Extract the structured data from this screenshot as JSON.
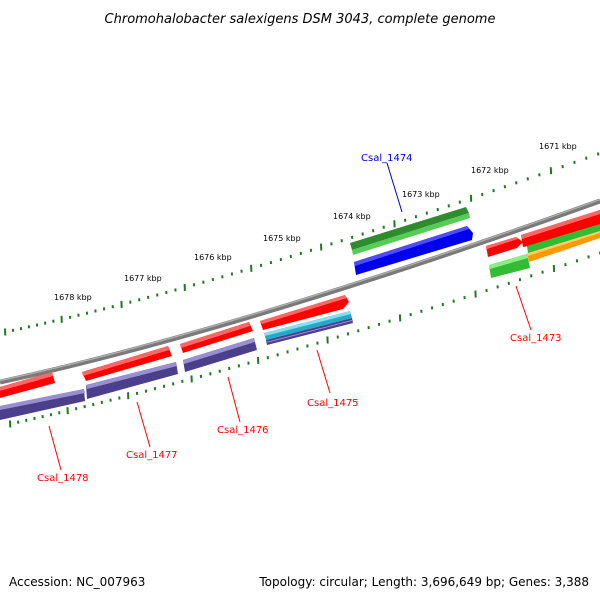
{
  "title": "Chromohalobacter salexigens DSM 3043, complete genome",
  "footer": {
    "accession": "Accession: NC_007963",
    "summary": "Topology: circular; Length: 3,696,649 bp; Genes: 3,388"
  },
  "colors": {
    "backbone": "#8a8a8a",
    "tick": "#1f7a1f",
    "label_red": "#ff0000",
    "label_blue": "#0000cc",
    "gene_red": "#ff0000",
    "gene_purple": "#4b3f8c",
    "gene_green": "#33bb33",
    "gene_darkgreen": "#2e8b2e",
    "gene_blue": "#0000ee",
    "gene_orange": "#ff9900",
    "gene_cyan": "#22aacc"
  },
  "kbp_labels": [
    "1671 kbp",
    "1672 kbp",
    "1673 kbp",
    "1674 kbp",
    "1675 kbp",
    "1676 kbp",
    "1677 kbp",
    "1678 kbp"
  ],
  "genes": [
    {
      "label": "Csal_1473",
      "color": "label_red"
    },
    {
      "label": "Csal_1474",
      "color": "label_blue"
    },
    {
      "label": "Csal_1475",
      "color": "label_red"
    },
    {
      "label": "Csal_1476",
      "color": "label_red"
    },
    {
      "label": "Csal_1477",
      "color": "label_red"
    },
    {
      "label": "Csal_1478",
      "color": "label_red"
    }
  ]
}
